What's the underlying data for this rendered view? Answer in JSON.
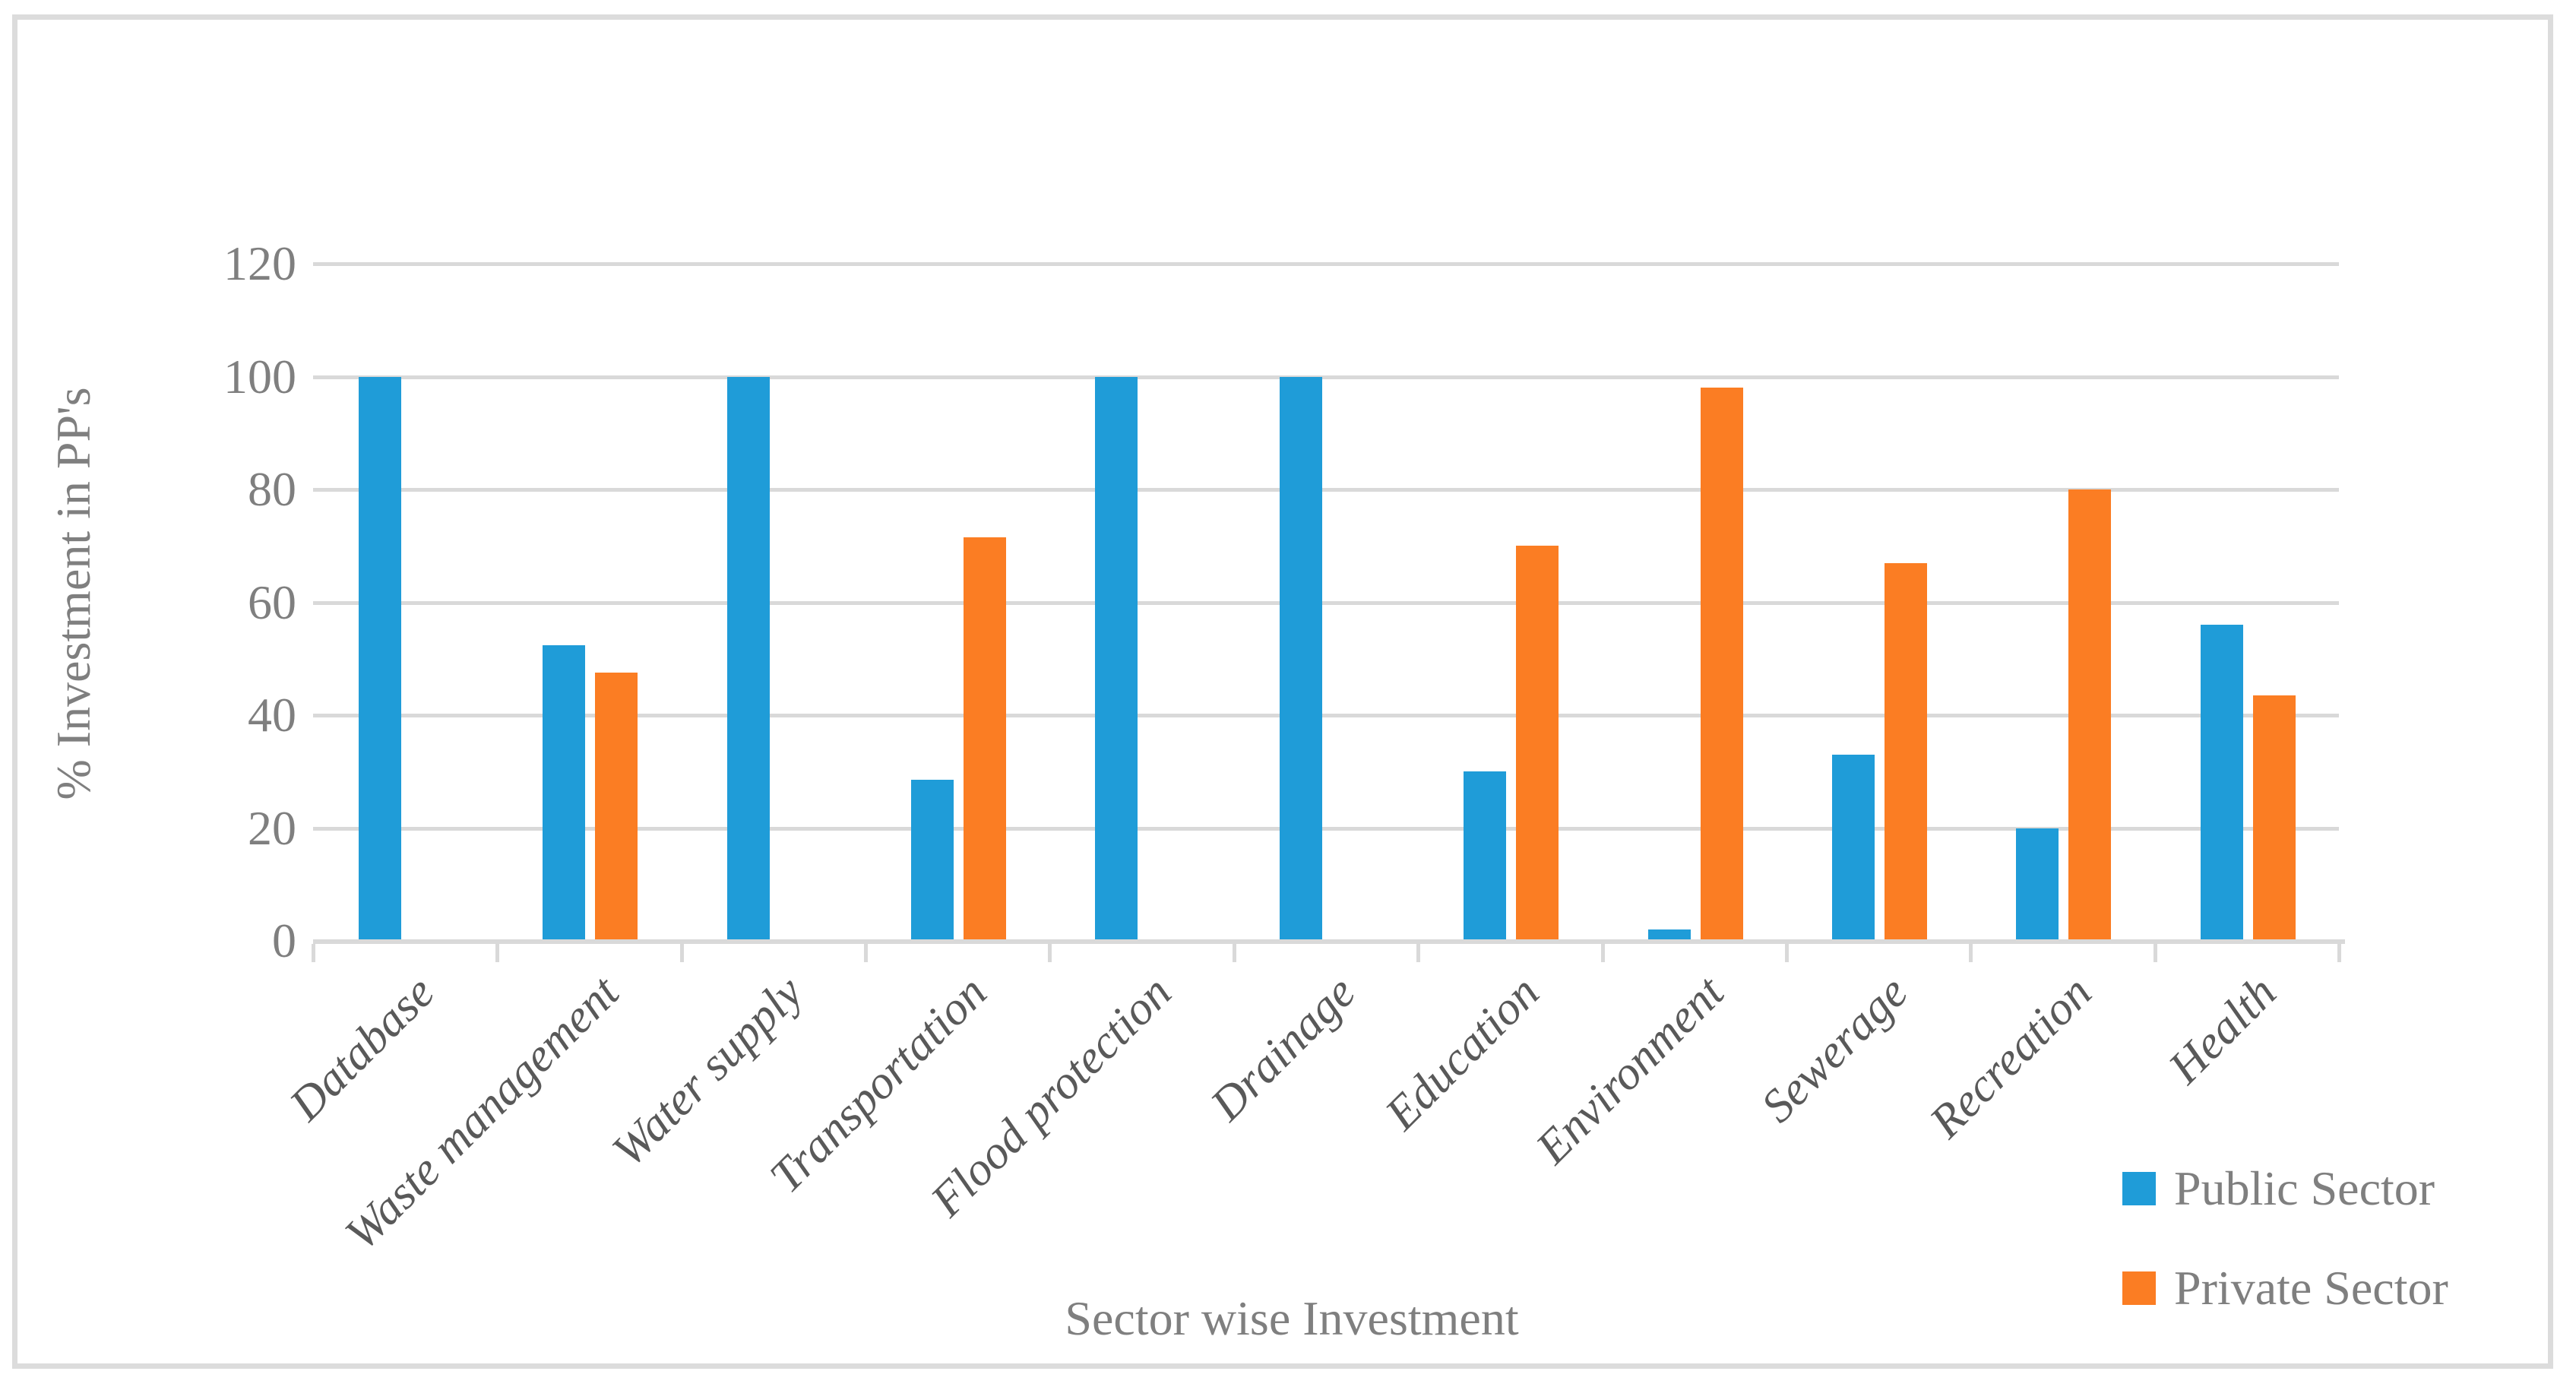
{
  "chart_data": {
    "type": "bar",
    "title": "",
    "xlabel": "Sector wise Investment",
    "ylabel": "% Investment in PP's",
    "ylim": [
      0,
      120
    ],
    "yticks": [
      0,
      20,
      40,
      60,
      80,
      100,
      120
    ],
    "grid": true,
    "legend_position": "bottom-right",
    "categories": [
      "Database",
      "Waste management",
      "Water supply",
      "Transportation",
      "Flood protection",
      "Drainage",
      "Education",
      "Environment",
      "Sewerage",
      "Recreation",
      "Health"
    ],
    "series": [
      {
        "name": "Public Sector",
        "color": "#1F9CD8",
        "values": [
          100,
          52.4,
          100,
          28.5,
          100,
          100,
          30,
          2,
          33,
          20,
          56
        ]
      },
      {
        "name": "Private Sector",
        "color": "#FB7D23",
        "values": [
          0,
          47.6,
          0,
          71.5,
          0,
          0,
          70,
          98,
          67,
          80,
          43.5
        ]
      }
    ],
    "colors": {
      "gridline": "#d9d9d9",
      "axis": "#d9d9d9",
      "frame_border": "#dcdcdc",
      "tick_label_text": "#7f7f7f",
      "category_label_text": "#595959",
      "axis_title_text": "#7f7f7f",
      "legend_text": "#7f7f7f",
      "background": "#ffffff"
    }
  }
}
